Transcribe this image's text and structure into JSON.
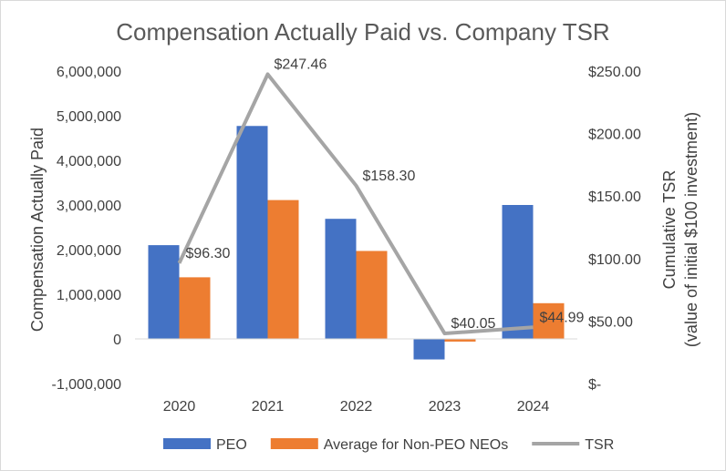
{
  "chart_data": {
    "type": "bar",
    "title": "Compensation Actually Paid vs. Company TSR",
    "categories": [
      "2020",
      "2021",
      "2022",
      "2023",
      "2024"
    ],
    "ylabel": "Compensation Actually Paid",
    "y2label_line1": "Cumulative TSR",
    "y2label_line2": "(value of initial $100 investment)",
    "ylim": [
      -1000000,
      6000000
    ],
    "y_ticks": [
      -1000000,
      0,
      1000000,
      2000000,
      3000000,
      4000000,
      5000000,
      6000000
    ],
    "y_tick_labels": [
      "-1,000,000",
      "0",
      "1,000,000",
      "2,000,000",
      "3,000,000",
      "4,000,000",
      "5,000,000",
      "6,000,000"
    ],
    "y2lim": [
      0,
      250
    ],
    "y2_ticks": [
      0,
      50,
      100,
      150,
      200,
      250
    ],
    "y2_tick_labels": [
      "$-",
      "$50.00",
      "$100.00",
      "$150.00",
      "$200.00",
      "$250.00"
    ],
    "series": [
      {
        "name": "PEO",
        "type": "bar",
        "color": "#4472c4",
        "values": [
          2100000,
          4770000,
          2690000,
          -460000,
          3000000
        ]
      },
      {
        "name": "Average for Non-PEO NEOs",
        "type": "bar",
        "color": "#ed7d31",
        "values": [
          1380000,
          3110000,
          1970000,
          -60000,
          800000
        ]
      },
      {
        "name": "TSR",
        "type": "line",
        "axis": "right",
        "color": "#a5a5a5",
        "values": [
          96.3,
          247.46,
          158.3,
          40.05,
          44.99
        ],
        "labels": [
          "$96.30",
          "$247.46",
          "$158.30",
          "$40.05",
          "$44.99"
        ]
      }
    ],
    "legend_position": "bottom",
    "grid": false
  }
}
